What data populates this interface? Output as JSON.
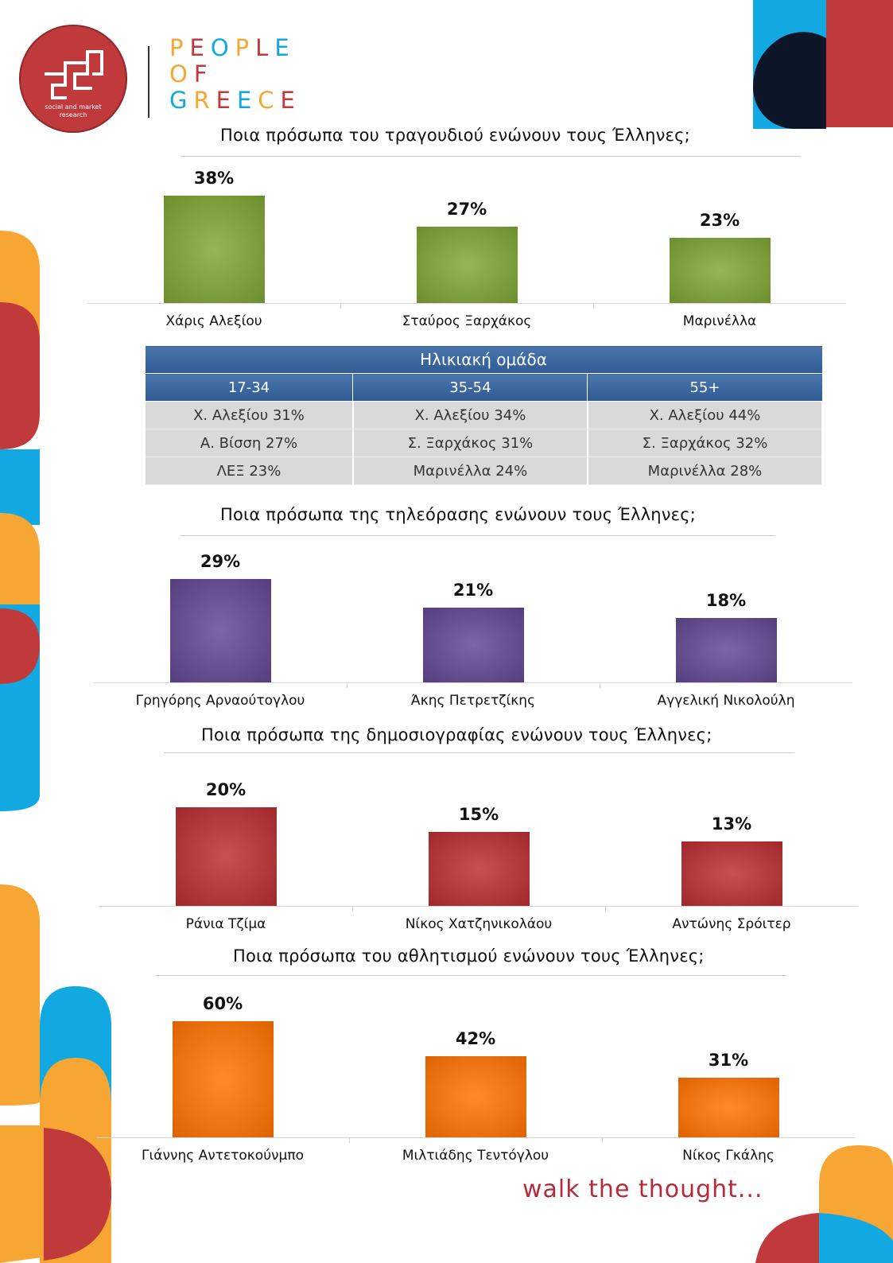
{
  "brand": {
    "logo_sub": "social and market research",
    "logo_mark": "ged",
    "wordmark": [
      "PEOPLE",
      "OF",
      "GREECE"
    ],
    "tagline": "walk the thought...",
    "colors": {
      "red": "#c0393b",
      "blue": "#12a9e2",
      "orange": "#f7a633",
      "navy": "#0d1529"
    }
  },
  "sections": [
    {
      "title": "Ποια πρόσωπα του τραγουδιού ενώνουν τους Έλληνες;"
    },
    {
      "title": "Ποια πρόσωπα της τηλεόρασης ενώνουν τους Έλληνες;"
    },
    {
      "title": "Ποια πρόσωπα της δημοσιογραφίας ενώνουν τους Έλληνες;"
    },
    {
      "title": "Ποια πρόσωπα του αθλητισμού ενώνουν τους Έλληνες;"
    }
  ],
  "age_table": {
    "header": "Ηλικιακή ομάδα",
    "columns": [
      "17-34",
      "35-54",
      "55+"
    ],
    "rows": [
      [
        "Χ. Αλεξίου 31%",
        "Χ. Αλεξίου 34%",
        "Χ. Αλεξίου 44%"
      ],
      [
        "Α. Βίσση 27%",
        "Σ. Ξαρχάκος 31%",
        "Σ. Ξαρχάκος 32%"
      ],
      [
        "ΛΕΞ 23%",
        "Μαρινέλλα 24%",
        "Μαρινέλλα 28%"
      ]
    ]
  },
  "chart_data": [
    {
      "type": "bar",
      "title": "Ποια πρόσωπα του τραγουδιού ενώνουν τους Έλληνες;",
      "categories": [
        "Χάρις Αλεξίου",
        "Σταύρος Ξαρχάκος",
        "Μαρινέλλα"
      ],
      "values": [
        38,
        27,
        23
      ],
      "value_labels": [
        "38%",
        "27%",
        "23%"
      ],
      "unit": "%",
      "color": "#7ea03e",
      "grid": false
    },
    {
      "type": "bar",
      "title": "Ποια πρόσωπα της τηλεόρασης ενώνουν τους Έλληνες;",
      "categories": [
        "Γρηγόρης Αρναούτογλου",
        "Άκης Πετρετζίκης",
        "Αγγελική Νικολούλη"
      ],
      "values": [
        29,
        21,
        18
      ],
      "value_labels": [
        "29%",
        "21%",
        "18%"
      ],
      "unit": "%",
      "color": "#67508f",
      "grid": false
    },
    {
      "type": "bar",
      "title": "Ποια πρόσωπα της δημοσιογραφίας ενώνουν τους Έλληνες;",
      "categories": [
        "Ράνια Τζίμα",
        "Νίκος Χατζηνικολάου",
        "Αντώνης Σρόιτερ"
      ],
      "values": [
        20,
        15,
        13
      ],
      "value_labels": [
        "20%",
        "15%",
        "13%"
      ],
      "unit": "%",
      "color": "#b33a3c",
      "grid": false
    },
    {
      "type": "bar",
      "title": "Ποια πρόσωπα του αθλητισμού ενώνουν τους Έλληνες;",
      "categories": [
        "Γιάννης Αντετοκούνμπο",
        "Μιλτιάδης Τεντόγλου",
        "Νίκος Γκάλης"
      ],
      "values": [
        60,
        42,
        31
      ],
      "value_labels": [
        "60%",
        "42%",
        "31%"
      ],
      "unit": "%",
      "color": "#ef7414",
      "grid": false
    }
  ]
}
